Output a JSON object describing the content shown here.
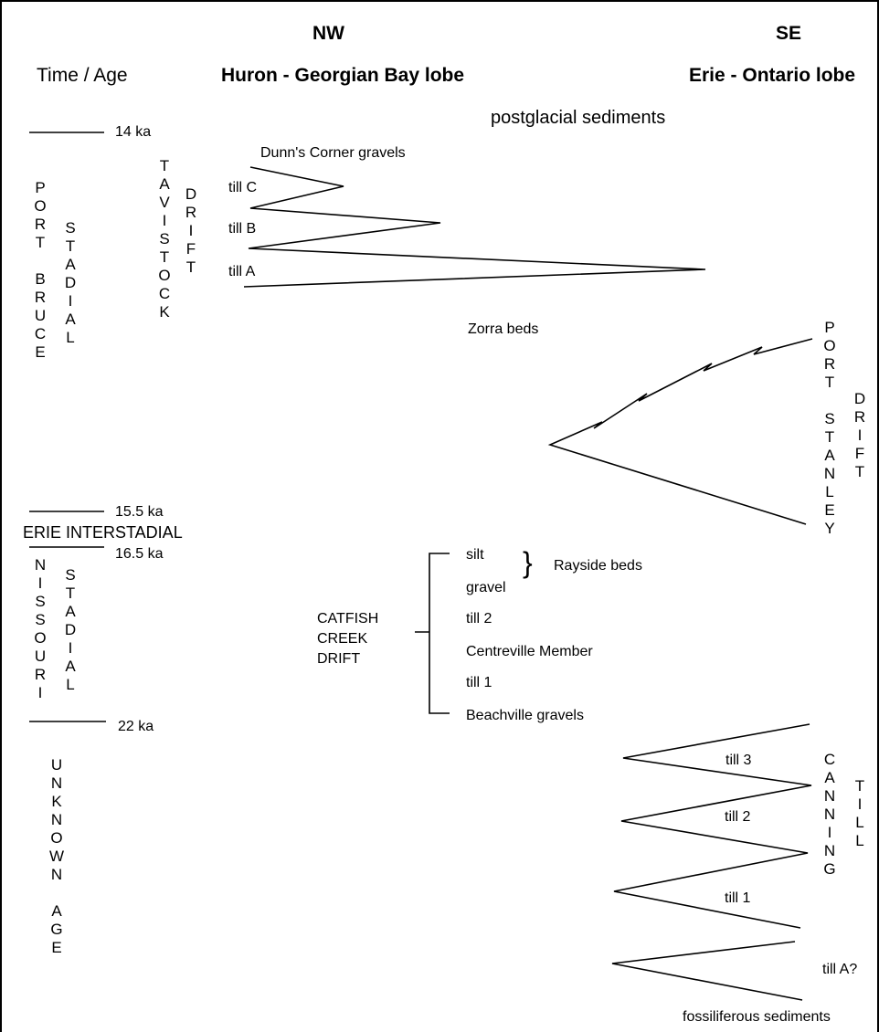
{
  "headers": {
    "nw": "NW",
    "se": "SE",
    "time_age": "Time / Age",
    "huron": "Huron - Georgian Bay lobe",
    "erie": "Erie - Ontario lobe"
  },
  "ages": {
    "a14": "14 ka",
    "a155": "15.5 ka",
    "a165": "16.5 ka",
    "a22": "22 ka"
  },
  "erie_interstadial": "ERIE INTERSTADIAL",
  "vertical": {
    "port_bruce": [
      "P",
      "O",
      "R",
      "T",
      " ",
      "B",
      "R",
      "U",
      "C",
      "E"
    ],
    "stadial_upper": [
      "S",
      "T",
      "A",
      "D",
      "I",
      "A",
      "L"
    ],
    "tavistock": [
      "T",
      "A",
      "V",
      "I",
      "S",
      "T",
      "O",
      "C",
      "K"
    ],
    "drift_upper": [
      "D",
      "R",
      "I",
      "F",
      "T"
    ],
    "port_stanley": [
      "P",
      "O",
      "R",
      "T",
      " ",
      "S",
      "T",
      "A",
      "N",
      "L",
      "E",
      "Y"
    ],
    "drift_right": [
      "D",
      "R",
      "I",
      "F",
      "T"
    ],
    "nissouri": [
      "N",
      "I",
      "S",
      "S",
      "O",
      "U",
      "R",
      "I"
    ],
    "stadial_lower": [
      "S",
      "T",
      "A",
      "D",
      "I",
      "A",
      "L"
    ],
    "unknown_age": [
      "U",
      "N",
      "K",
      "N",
      "O",
      "W",
      "N",
      " ",
      "A",
      "G",
      "E"
    ],
    "canning": [
      "C",
      "A",
      "N",
      "N",
      "I",
      "N",
      "G"
    ],
    "till_right": [
      "T",
      "I",
      "L",
      "L"
    ]
  },
  "units": {
    "postglacial": "postglacial sediments",
    "dunns_corner": "Dunn's Corner gravels",
    "till_c": "till C",
    "till_b": "till B",
    "till_a": "till A",
    "zorra": "Zorra beds",
    "silt": "silt",
    "gravel": "gravel",
    "rayside": "Rayside beds",
    "brace": "}",
    "catfish": [
      "CATFISH",
      "CREEK",
      "DRIFT"
    ],
    "cc_till2": "till 2",
    "centreville": "Centreville Member",
    "cc_till1": "till 1",
    "beachville": "Beachville gravels",
    "can_till3": "till 3",
    "can_till2": "till 2",
    "can_till1": "till 1",
    "till_a_q": "till A?",
    "fossiliferous": "fossiliferous sediments"
  }
}
